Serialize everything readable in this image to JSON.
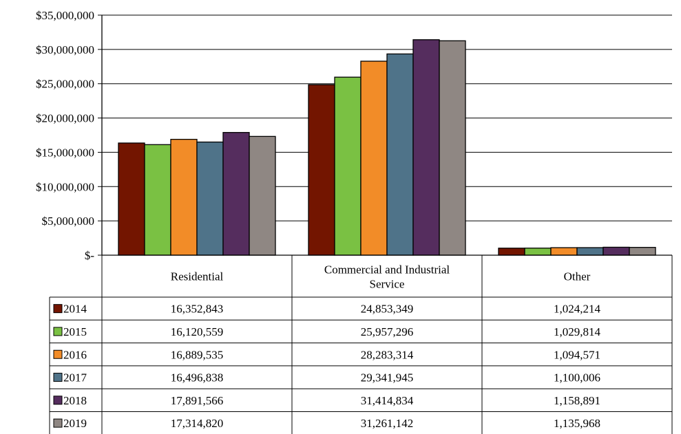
{
  "chart_data": {
    "type": "bar",
    "categories": [
      "Residential",
      "Commercial and Industrial Service",
      "Other"
    ],
    "category_lines": [
      [
        "Residential"
      ],
      [
        "Commercial and Industrial",
        "Service"
      ],
      [
        "Other"
      ]
    ],
    "ylim": [
      0,
      35000000
    ],
    "yticks": [
      0,
      5000000,
      10000000,
      15000000,
      20000000,
      25000000,
      30000000,
      35000000
    ],
    "ytick_labels": [
      "$-",
      "$5,000,000",
      "$10,000,000",
      "$15,000,000",
      "$20,000,000",
      "$25,000,000",
      "$30,000,000",
      "$35,000,000"
    ],
    "grid": true,
    "legend": "data-table",
    "series": [
      {
        "name": "2014",
        "color": "#731500",
        "values": [
          16352843,
          24853349,
          1024214
        ],
        "labels": [
          "16,352,843",
          "24,853,349",
          "1,024,214"
        ]
      },
      {
        "name": "2015",
        "color": "#7ac143",
        "values": [
          16120559,
          25957296,
          1029814
        ],
        "labels": [
          "16,120,559",
          "25,957,296",
          "1,029,814"
        ]
      },
      {
        "name": "2016",
        "color": "#f28c28",
        "values": [
          16889535,
          28283314,
          1094571
        ],
        "labels": [
          "16,889,535",
          "28,283,314",
          "1,094,571"
        ]
      },
      {
        "name": "2017",
        "color": "#4f7389",
        "values": [
          16496838,
          29341945,
          1100006
        ],
        "labels": [
          "16,496,838",
          "29,341,945",
          "1,100,006"
        ]
      },
      {
        "name": "2018",
        "color": "#552d5e",
        "values": [
          17891566,
          31414834,
          1158891
        ],
        "labels": [
          "17,891,566",
          "31,414,834",
          "1,158,891"
        ]
      },
      {
        "name": "2019",
        "color": "#8f8783",
        "values": [
          17314820,
          31261142,
          1135968
        ],
        "labels": [
          "17,314,820",
          "31,261,142",
          "1,135,968"
        ]
      }
    ]
  }
}
